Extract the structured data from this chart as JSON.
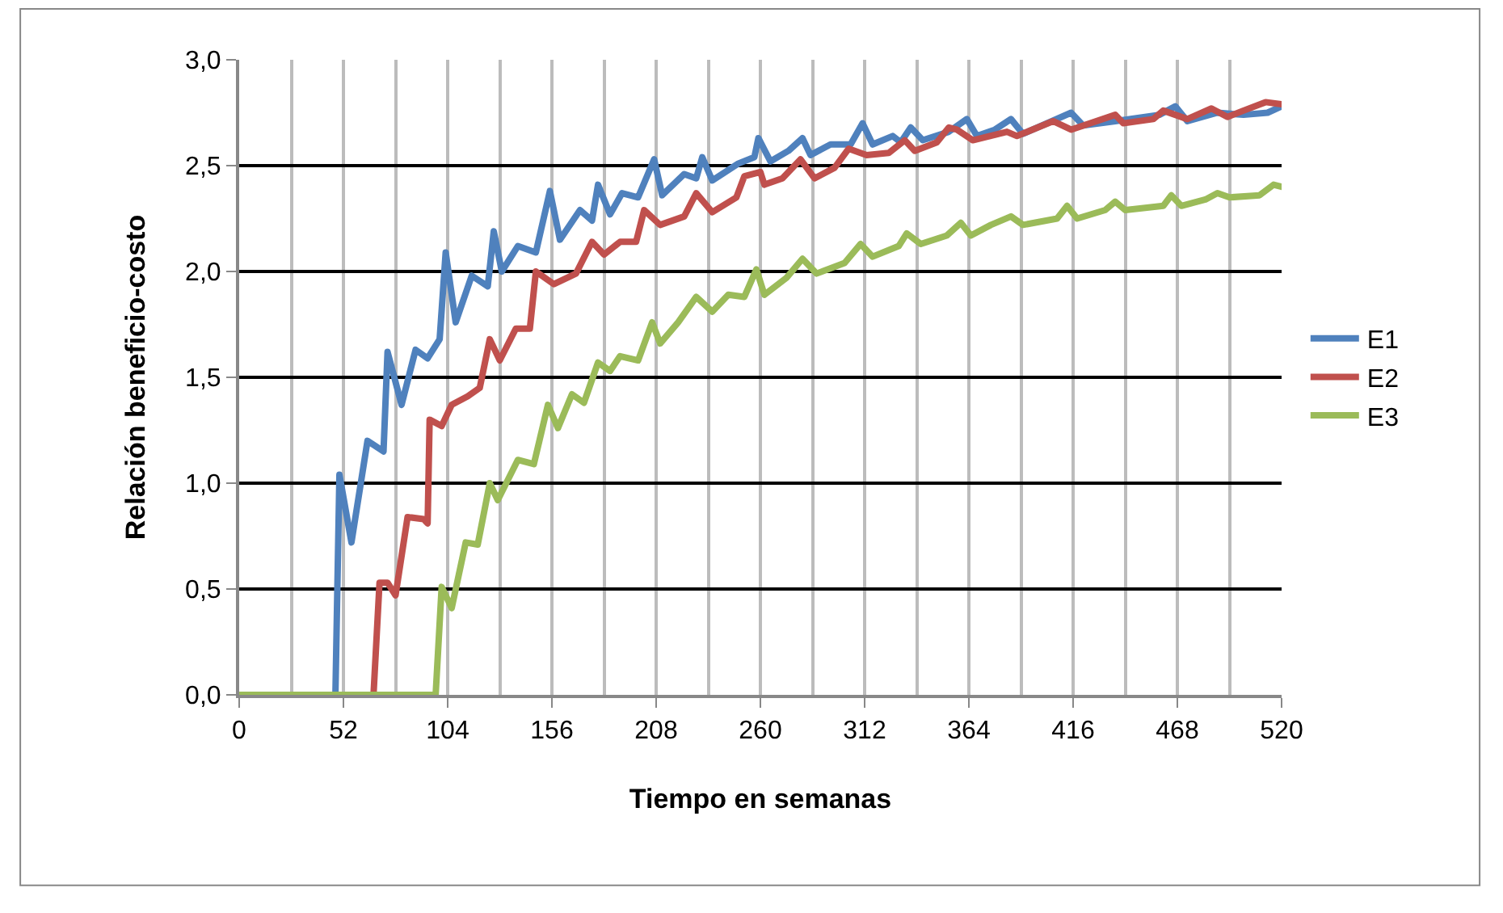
{
  "chart_data": {
    "type": "line",
    "xlabel": "Tiempo en semanas",
    "ylabel": "Relación beneficio-costo",
    "xlim": [
      0,
      520
    ],
    "xticks": [
      0,
      52,
      104,
      156,
      208,
      260,
      312,
      364,
      416,
      468,
      520
    ],
    "ylim": [
      0,
      3
    ],
    "yticks": [
      {
        "value": 0,
        "label": "0,0"
      },
      {
        "value": 0.5,
        "label": "0,5"
      },
      {
        "value": 1,
        "label": "1,0"
      },
      {
        "value": 1.5,
        "label": "1,5"
      },
      {
        "value": 2,
        "label": "2,0"
      },
      {
        "value": 2.5,
        "label": "2,5"
      },
      {
        "value": 3,
        "label": "3,0"
      }
    ],
    "grid": true,
    "legend": "right",
    "marker": "none",
    "line_style": "solid",
    "series": [
      {
        "name": "E1",
        "color": "#4f81bd",
        "x": [
          0,
          48,
          50,
          56,
          64,
          72,
          74,
          81,
          88,
          94,
          100,
          103,
          108,
          116,
          124,
          127,
          131,
          139,
          148,
          155,
          160,
          170,
          176,
          179,
          185,
          191,
          199,
          207,
          211,
          222,
          228,
          231,
          236,
          249,
          257,
          259,
          265,
          274,
          281,
          285,
          295,
          305,
          311,
          316,
          326,
          330,
          335,
          341,
          354,
          363,
          368,
          377,
          385,
          391,
          415,
          421,
          437,
          459,
          467,
          473,
          488,
          501,
          513,
          520
        ],
        "values": [
          0,
          0,
          1.04,
          0.72,
          1.2,
          1.15,
          1.62,
          1.37,
          1.63,
          1.59,
          1.68,
          2.09,
          1.76,
          1.98,
          1.93,
          2.19,
          2.0,
          2.12,
          2.09,
          2.38,
          2.15,
          2.29,
          2.24,
          2.41,
          2.27,
          2.37,
          2.35,
          2.53,
          2.36,
          2.46,
          2.44,
          2.54,
          2.43,
          2.51,
          2.54,
          2.63,
          2.52,
          2.57,
          2.63,
          2.55,
          2.6,
          2.6,
          2.7,
          2.6,
          2.64,
          2.61,
          2.68,
          2.62,
          2.66,
          2.72,
          2.64,
          2.67,
          2.72,
          2.65,
          2.75,
          2.69,
          2.71,
          2.74,
          2.78,
          2.71,
          2.75,
          2.74,
          2.75,
          2.78
        ]
      },
      {
        "name": "E2",
        "color": "#c0504d",
        "x": [
          0,
          67,
          70,
          74,
          78,
          84,
          92,
          94,
          95,
          101,
          106,
          114,
          120,
          125,
          130,
          138,
          145,
          148,
          157,
          168,
          176,
          182,
          190,
          198,
          202,
          210,
          222,
          228,
          236,
          248,
          252,
          260,
          262,
          271,
          280,
          287,
          297,
          304,
          313,
          324,
          332,
          337,
          348,
          354,
          358,
          366,
          383,
          388,
          406,
          415,
          437,
          441,
          456,
          461,
          473,
          485,
          493,
          501,
          512,
          520
        ],
        "values": [
          0,
          0,
          0.53,
          0.53,
          0.47,
          0.84,
          0.83,
          0.81,
          1.3,
          1.27,
          1.37,
          1.41,
          1.45,
          1.68,
          1.58,
          1.73,
          1.73,
          2.0,
          1.94,
          1.99,
          2.14,
          2.08,
          2.14,
          2.14,
          2.29,
          2.22,
          2.26,
          2.37,
          2.28,
          2.35,
          2.45,
          2.47,
          2.41,
          2.44,
          2.53,
          2.44,
          2.49,
          2.58,
          2.55,
          2.56,
          2.62,
          2.57,
          2.61,
          2.68,
          2.67,
          2.62,
          2.66,
          2.64,
          2.71,
          2.67,
          2.74,
          2.7,
          2.72,
          2.76,
          2.72,
          2.77,
          2.73,
          2.76,
          2.8,
          2.79
        ]
      },
      {
        "name": "E3",
        "color": "#9bbb59",
        "x": [
          0,
          98,
          101,
          106,
          113,
          119,
          125,
          129,
          139,
          147,
          154,
          159,
          166,
          172,
          179,
          185,
          190,
          199,
          206,
          210,
          219,
          228,
          236,
          244,
          252,
          258,
          262,
          273,
          281,
          288,
          302,
          310,
          316,
          329,
          333,
          340,
          353,
          360,
          365,
          375,
          385,
          391,
          408,
          413,
          418,
          432,
          437,
          442,
          461,
          465,
          470,
          482,
          488,
          494,
          509,
          516,
          520
        ],
        "values": [
          0,
          0,
          0.51,
          0.41,
          0.72,
          0.71,
          1.0,
          0.92,
          1.11,
          1.09,
          1.37,
          1.26,
          1.42,
          1.38,
          1.57,
          1.53,
          1.6,
          1.58,
          1.76,
          1.66,
          1.76,
          1.88,
          1.81,
          1.89,
          1.88,
          2.01,
          1.89,
          1.97,
          2.06,
          1.99,
          2.04,
          2.13,
          2.07,
          2.12,
          2.18,
          2.13,
          2.17,
          2.23,
          2.17,
          2.22,
          2.26,
          2.22,
          2.25,
          2.31,
          2.25,
          2.29,
          2.33,
          2.29,
          2.31,
          2.36,
          2.31,
          2.34,
          2.37,
          2.35,
          2.36,
          2.41,
          2.4
        ]
      }
    ]
  }
}
